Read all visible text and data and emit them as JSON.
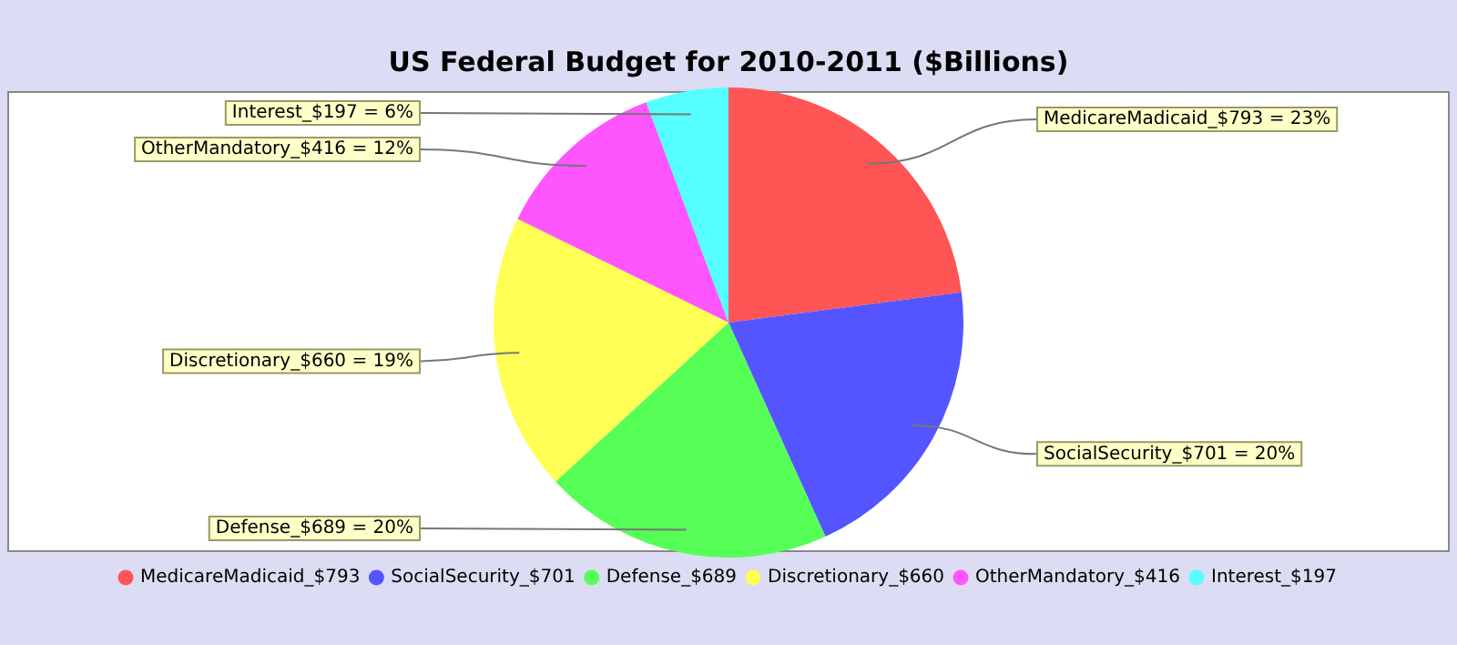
{
  "chart_data": {
    "type": "pie",
    "title": "US Federal Budget for 2010-2011 ($Billions)",
    "categories": [
      "MedicareMadicaid_$793",
      "SocialSecurity_$701",
      "Defense_$689",
      "Discretionary_$660",
      "OtherMandatory_$416",
      "Interest_$197"
    ],
    "values": [
      793,
      701,
      689,
      660,
      416,
      197
    ],
    "colors": [
      "#ff5555",
      "#5555ff",
      "#55ff55",
      "#ffff55",
      "#ff55ff",
      "#55ffff"
    ],
    "value_labels": [
      "MedicareMadicaid_$793 = 23%",
      "SocialSecurity_$701 = 20%",
      "Defense_$689 = 20%",
      "Discretionary_$660 = 19%",
      "OtherMandatory_$416 = 12%",
      "Interest_$197 = 6%"
    ],
    "legend": "bottom"
  }
}
